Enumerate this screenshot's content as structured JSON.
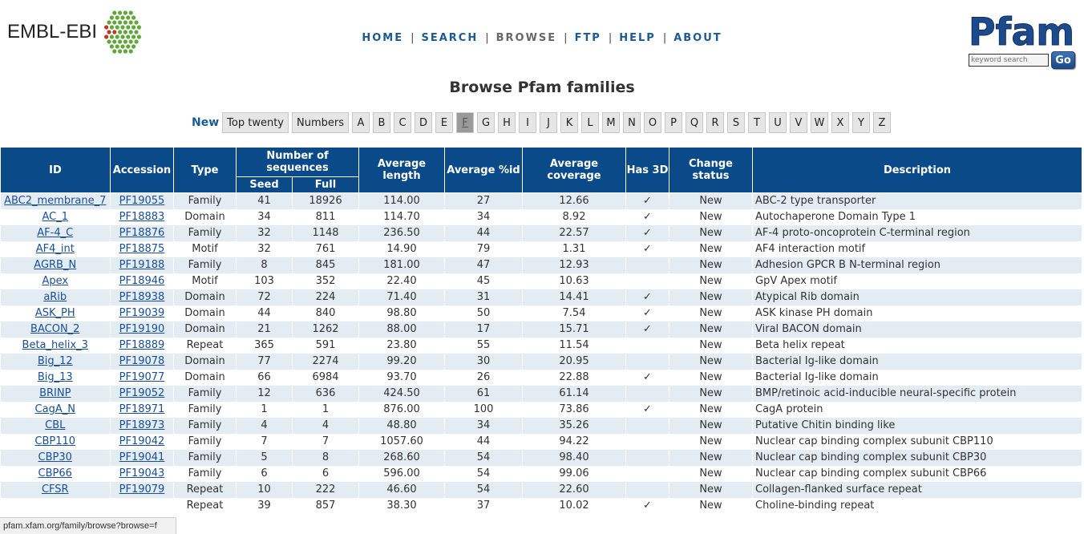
{
  "header": {
    "ebi_logo_text": "EMBL-EBI",
    "nav": [
      {
        "label": "HOME"
      },
      {
        "label": "SEARCH"
      },
      {
        "label": "BROWSE",
        "current": true
      },
      {
        "label": "FTP"
      },
      {
        "label": "HELP"
      },
      {
        "label": "ABOUT"
      }
    ],
    "nav_separator": "|",
    "pfam_logo_text": "Pfam",
    "search_placeholder": "keyword search",
    "go_label": "Go"
  },
  "page": {
    "title": "Browse Pfam families"
  },
  "letters": {
    "new_label": "New",
    "top_twenty": "Top twenty",
    "numbers": "Numbers",
    "alphabet": [
      "A",
      "B",
      "C",
      "D",
      "E",
      "F",
      "G",
      "H",
      "I",
      "J",
      "K",
      "L",
      "M",
      "N",
      "O",
      "P",
      "Q",
      "R",
      "S",
      "T",
      "U",
      "V",
      "W",
      "X",
      "Y",
      "Z"
    ],
    "active": "F"
  },
  "table": {
    "headers": {
      "id": "ID",
      "accession": "Accession",
      "type": "Type",
      "num_seq": "Number of sequences",
      "seed": "Seed",
      "full": "Full",
      "avg_length": "Average length",
      "avg_id": "Average %id",
      "avg_coverage": "Average coverage",
      "has3d": "Has 3D",
      "change_status": "Change status",
      "description": "Description"
    },
    "rows": [
      {
        "id": "ABC2_membrane_7",
        "acc": "PF19055",
        "type": "Family",
        "seed": "41",
        "full": "18926",
        "len": "114.00",
        "pid": "27",
        "cov": "12.66",
        "has3d": "✓",
        "status": "New",
        "desc": "ABC-2 type transporter"
      },
      {
        "id": "AC_1",
        "acc": "PF18883",
        "type": "Domain",
        "seed": "34",
        "full": "811",
        "len": "114.70",
        "pid": "34",
        "cov": "8.92",
        "has3d": "✓",
        "status": "New",
        "desc": "Autochaperone Domain Type 1"
      },
      {
        "id": "AF-4_C",
        "acc": "PF18876",
        "type": "Family",
        "seed": "32",
        "full": "1148",
        "len": "236.50",
        "pid": "44",
        "cov": "22.57",
        "has3d": "✓",
        "status": "New",
        "desc": "AF-4 proto-oncoprotein C-terminal region"
      },
      {
        "id": "AF4_int",
        "acc": "PF18875",
        "type": "Motif",
        "seed": "32",
        "full": "761",
        "len": "14.90",
        "pid": "79",
        "cov": "1.31",
        "has3d": "✓",
        "status": "New",
        "desc": "AF4 interaction motif"
      },
      {
        "id": "AGRB_N",
        "acc": "PF19188",
        "type": "Family",
        "seed": "8",
        "full": "845",
        "len": "181.00",
        "pid": "47",
        "cov": "12.93",
        "has3d": "",
        "status": "New",
        "desc": "Adhesion GPCR B N-terminal region"
      },
      {
        "id": "Apex",
        "acc": "PF18946",
        "type": "Motif",
        "seed": "103",
        "full": "352",
        "len": "22.40",
        "pid": "45",
        "cov": "10.63",
        "has3d": "",
        "status": "New",
        "desc": "GpV Apex motif"
      },
      {
        "id": "aRib",
        "acc": "PF18938",
        "type": "Domain",
        "seed": "72",
        "full": "224",
        "len": "71.40",
        "pid": "31",
        "cov": "14.41",
        "has3d": "✓",
        "status": "New",
        "desc": "Atypical Rib domain"
      },
      {
        "id": "ASK_PH",
        "acc": "PF19039",
        "type": "Domain",
        "seed": "44",
        "full": "840",
        "len": "98.80",
        "pid": "50",
        "cov": "7.54",
        "has3d": "✓",
        "status": "New",
        "desc": "ASK kinase PH domain"
      },
      {
        "id": "BACON_2",
        "acc": "PF19190",
        "type": "Domain",
        "seed": "21",
        "full": "1262",
        "len": "88.00",
        "pid": "17",
        "cov": "15.71",
        "has3d": "✓",
        "status": "New",
        "desc": "Viral BACON domain"
      },
      {
        "id": "Beta_helix_3",
        "acc": "PF18889",
        "type": "Repeat",
        "seed": "365",
        "full": "591",
        "len": "23.80",
        "pid": "55",
        "cov": "11.54",
        "has3d": "",
        "status": "New",
        "desc": "Beta helix repeat"
      },
      {
        "id": "Big_12",
        "acc": "PF19078",
        "type": "Domain",
        "seed": "77",
        "full": "2274",
        "len": "99.20",
        "pid": "30",
        "cov": "20.95",
        "has3d": "",
        "status": "New",
        "desc": "Bacterial Ig-like domain"
      },
      {
        "id": "Big_13",
        "acc": "PF19077",
        "type": "Domain",
        "seed": "66",
        "full": "6984",
        "len": "93.70",
        "pid": "26",
        "cov": "22.88",
        "has3d": "✓",
        "status": "New",
        "desc": "Bacterial Ig-like domain"
      },
      {
        "id": "BRINP",
        "acc": "PF19052",
        "type": "Family",
        "seed": "12",
        "full": "636",
        "len": "424.50",
        "pid": "61",
        "cov": "61.14",
        "has3d": "",
        "status": "New",
        "desc": "BMP/retinoic acid-inducible neural-specific protein"
      },
      {
        "id": "CagA_N",
        "acc": "PF18971",
        "type": "Family",
        "seed": "1",
        "full": "1",
        "len": "876.00",
        "pid": "100",
        "cov": "73.86",
        "has3d": "✓",
        "status": "New",
        "desc": "CagA protein"
      },
      {
        "id": "CBL",
        "acc": "PF18973",
        "type": "Family",
        "seed": "4",
        "full": "4",
        "len": "48.80",
        "pid": "34",
        "cov": "35.26",
        "has3d": "",
        "status": "New",
        "desc": "Putative Chitin binding like"
      },
      {
        "id": "CBP110",
        "acc": "PF19042",
        "type": "Family",
        "seed": "7",
        "full": "7",
        "len": "1057.60",
        "pid": "44",
        "cov": "94.22",
        "has3d": "",
        "status": "New",
        "desc": "Nuclear cap binding complex subunit CBP110"
      },
      {
        "id": "CBP30",
        "acc": "PF19041",
        "type": "Family",
        "seed": "5",
        "full": "8",
        "len": "268.60",
        "pid": "54",
        "cov": "98.40",
        "has3d": "",
        "status": "New",
        "desc": "Nuclear cap binding complex subunit CBP30"
      },
      {
        "id": "CBP66",
        "acc": "PF19043",
        "type": "Family",
        "seed": "6",
        "full": "6",
        "len": "596.00",
        "pid": "54",
        "cov": "99.06",
        "has3d": "",
        "status": "New",
        "desc": "Nuclear cap binding complex subunit CBP66"
      },
      {
        "id": "CFSR",
        "acc": "PF19079",
        "type": "Repeat",
        "seed": "10",
        "full": "222",
        "len": "46.60",
        "pid": "54",
        "cov": "22.60",
        "has3d": "",
        "status": "New",
        "desc": "Collagen-flanked surface repeat"
      },
      {
        "id": "",
        "acc": "",
        "type": "Repeat",
        "seed": "39",
        "full": "857",
        "len": "38.30",
        "pid": "37",
        "cov": "10.02",
        "has3d": "✓",
        "status": "New",
        "desc": "Choline-binding repeat"
      }
    ]
  },
  "status_bar": {
    "url": "pfam.xfam.org/family/browse?browse=f"
  },
  "colors": {
    "header_blue": "#0b4a88",
    "link_blue": "#1a4f94",
    "row_alt": "#e3ebf3"
  }
}
